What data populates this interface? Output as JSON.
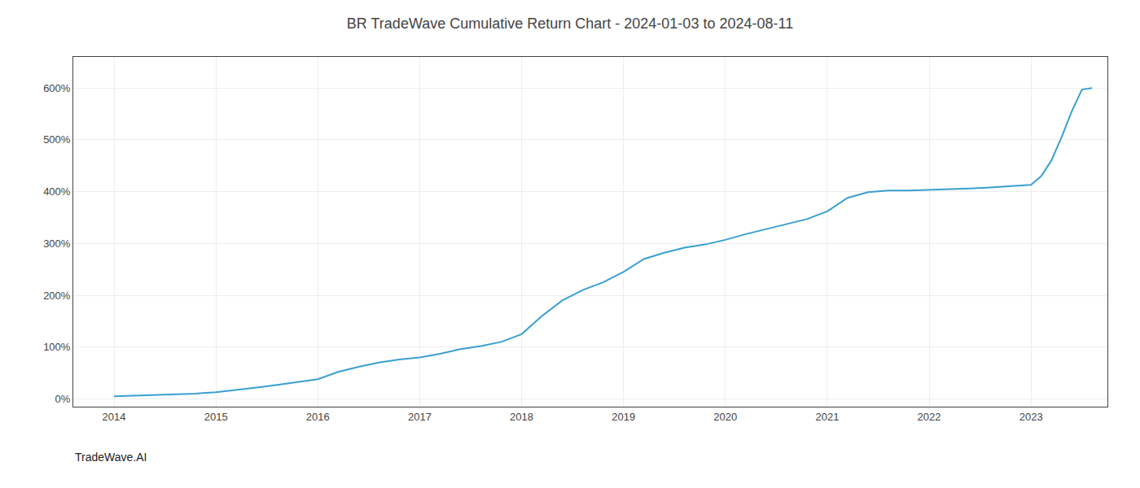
{
  "chart_data": {
    "type": "line",
    "title": "BR TradeWave Cumulative Return Chart - 2024-01-03 to 2024-08-11",
    "annotations": [
      "TradeWave.AI"
    ],
    "x": [
      2014.0,
      2014.2,
      2014.4,
      2014.6,
      2014.8,
      2015.0,
      2015.2,
      2015.4,
      2015.6,
      2015.8,
      2016.0,
      2016.2,
      2016.4,
      2016.6,
      2016.8,
      2017.0,
      2017.2,
      2017.4,
      2017.6,
      2017.8,
      2018.0,
      2018.2,
      2018.4,
      2018.6,
      2018.8,
      2019.0,
      2019.2,
      2019.4,
      2019.6,
      2019.8,
      2020.0,
      2020.2,
      2020.4,
      2020.6,
      2020.8,
      2021.0,
      2021.2,
      2021.4,
      2021.6,
      2021.8,
      2022.0,
      2022.2,
      2022.4,
      2022.6,
      2022.8,
      2023.0,
      2023.1,
      2023.2,
      2023.3,
      2023.4,
      2023.5,
      2023.6
    ],
    "values": [
      5,
      6,
      7,
      8,
      10,
      13,
      17,
      22,
      27,
      32,
      38,
      52,
      62,
      70,
      76,
      80,
      87,
      96,
      102,
      110,
      125,
      160,
      190,
      210,
      225,
      245,
      270,
      282,
      292,
      298,
      307,
      318,
      328,
      338,
      347,
      362,
      388,
      399,
      402,
      402,
      403,
      404,
      406,
      408,
      410,
      413,
      430,
      460,
      505,
      555,
      597,
      600
    ],
    "color": "#3a9fd0",
    "xlim": [
      2013.6,
      2023.75
    ],
    "xticks": [
      2014,
      2015,
      2016,
      2017,
      2018,
      2019,
      2020,
      2021,
      2022,
      2023
    ],
    "ylim": [
      -15,
      660
    ],
    "yticks": [
      {
        "value": 0,
        "label": "0%"
      },
      {
        "value": 100,
        "label": "100%"
      },
      {
        "value": 200,
        "label": "200%"
      },
      {
        "value": 300,
        "label": "300%"
      },
      {
        "value": 400,
        "label": "400%"
      },
      {
        "value": 500,
        "label": "500%"
      },
      {
        "value": 600,
        "label": "600%"
      }
    ],
    "grid": true
  }
}
